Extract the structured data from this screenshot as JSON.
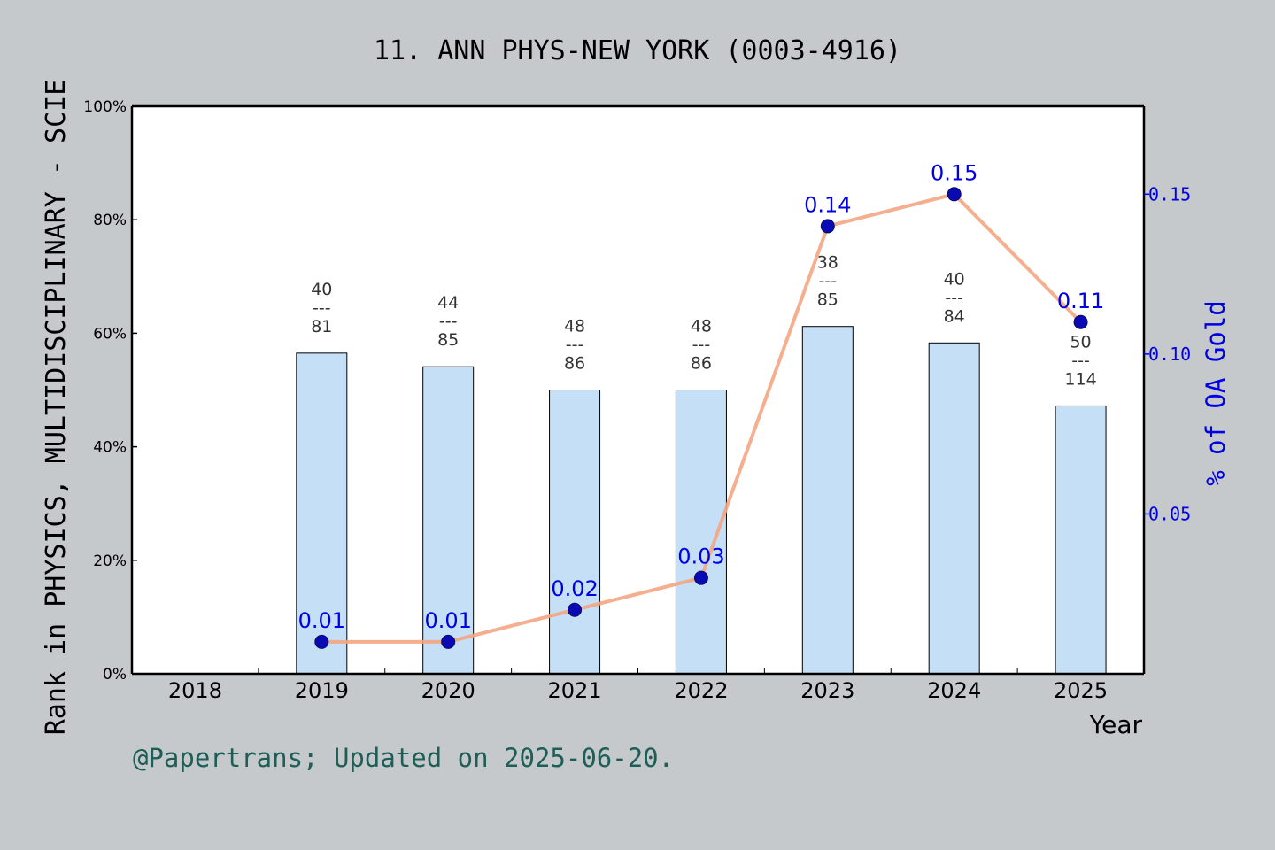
{
  "chart_data": {
    "type": "bar",
    "title": "11. ANN PHYS-NEW YORK (0003-4916)",
    "xlabel": "Year",
    "ylabel": "Rank in PHYSICS, MULTIDISCIPLINARY - SCIE",
    "y2label": "% of OA Gold",
    "ylim": [
      0,
      100
    ],
    "y2lim": [
      0,
      0.1775
    ],
    "y_ticks": [
      "0%",
      "20%",
      "40%",
      "60%",
      "80%",
      "100%"
    ],
    "y2_ticks": [
      "0.05",
      "0.10",
      "0.15"
    ],
    "categories": [
      "2018",
      "2019",
      "2020",
      "2021",
      "2022",
      "2023",
      "2024",
      "2025"
    ],
    "series": [
      {
        "kind": "bar",
        "values": [
          null,
          56.5,
          54.1,
          50.0,
          50.0,
          61.2,
          58.3,
          47.2
        ],
        "labels": [
          null,
          "40\n---\n81",
          "44\n---\n85",
          "48\n---\n86",
          "48\n---\n86",
          "38\n---\n85",
          "40\n---\n84",
          "50\n---\n114"
        ],
        "color": "#c5dff6"
      },
      {
        "kind": "line",
        "axis": "right",
        "values": [
          null,
          0.01,
          0.01,
          0.02,
          0.03,
          0.14,
          0.15,
          0.11
        ],
        "labels": [
          null,
          "0.01",
          "0.01",
          "0.02",
          "0.03",
          "0.14",
          "0.15",
          "0.11"
        ],
        "line_color": "#f4a582",
        "marker_color": "#0a0ab4"
      }
    ],
    "grid": false,
    "legend": "none"
  },
  "footer": {
    "credit": "@Papertrans; Updated on 2025-06-20."
  },
  "colors": {
    "background": "#c5c9cc",
    "plot_bg": "#ffffff",
    "right_axis": "#0000e6",
    "footer": "#1e5e57"
  }
}
